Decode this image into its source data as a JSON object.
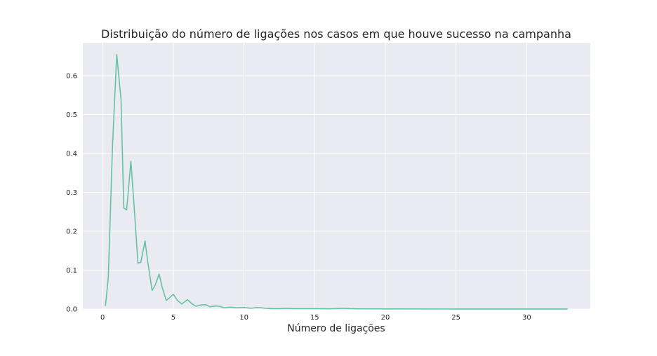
{
  "chart_data": {
    "type": "line",
    "title": "Distribuição do número de ligações nos casos em que houve sucesso na campanha",
    "xlabel": "Número de ligações",
    "ylabel": "",
    "xlim": [
      -1.4,
      34.5
    ],
    "ylim": [
      0.0,
      0.685
    ],
    "xticks": [
      0,
      5,
      10,
      15,
      20,
      25,
      30
    ],
    "xtick_labels": [
      "0",
      "5",
      "10",
      "15",
      "20",
      "25",
      "30"
    ],
    "yticks": [
      0.0,
      0.1,
      0.2,
      0.3,
      0.4,
      0.5,
      0.6
    ],
    "ytick_labels": [
      "0.0",
      "0.1",
      "0.2",
      "0.3",
      "0.4",
      "0.5",
      "0.6"
    ],
    "grid": true,
    "legend": "none",
    "series": [
      {
        "color": "#66c2a5",
        "x": [
          0.2,
          0.4,
          0.7,
          1.0,
          1.3,
          1.5,
          1.7,
          2.0,
          2.2,
          2.5,
          2.7,
          3.0,
          3.2,
          3.5,
          3.7,
          4.0,
          4.2,
          4.5,
          4.7,
          5.0,
          5.3,
          5.6,
          6.0,
          6.3,
          6.6,
          7.0,
          7.3,
          7.6,
          8.0,
          8.3,
          8.6,
          9.0,
          9.5,
          10.0,
          10.5,
          11.0,
          11.5,
          12.0,
          12.5,
          13.0,
          13.5,
          14.0,
          15.0,
          16.0,
          16.5,
          17.0,
          17.5,
          18.0,
          20.0,
          25.0,
          30.0,
          32.9
        ],
        "y": [
          0.008,
          0.08,
          0.42,
          0.655,
          0.54,
          0.26,
          0.255,
          0.38,
          0.28,
          0.118,
          0.12,
          0.175,
          0.12,
          0.048,
          0.06,
          0.09,
          0.058,
          0.022,
          0.028,
          0.038,
          0.022,
          0.013,
          0.024,
          0.014,
          0.007,
          0.011,
          0.011,
          0.006,
          0.008,
          0.007,
          0.003,
          0.005,
          0.003,
          0.004,
          0.002,
          0.004,
          0.002,
          0.001,
          0.001,
          0.002,
          0.001,
          0.001,
          0.001,
          0.0005,
          0.001,
          0.002,
          0.001,
          0.0005,
          0.0003,
          0.0002,
          0.0001,
          0.0001
        ]
      }
    ]
  }
}
